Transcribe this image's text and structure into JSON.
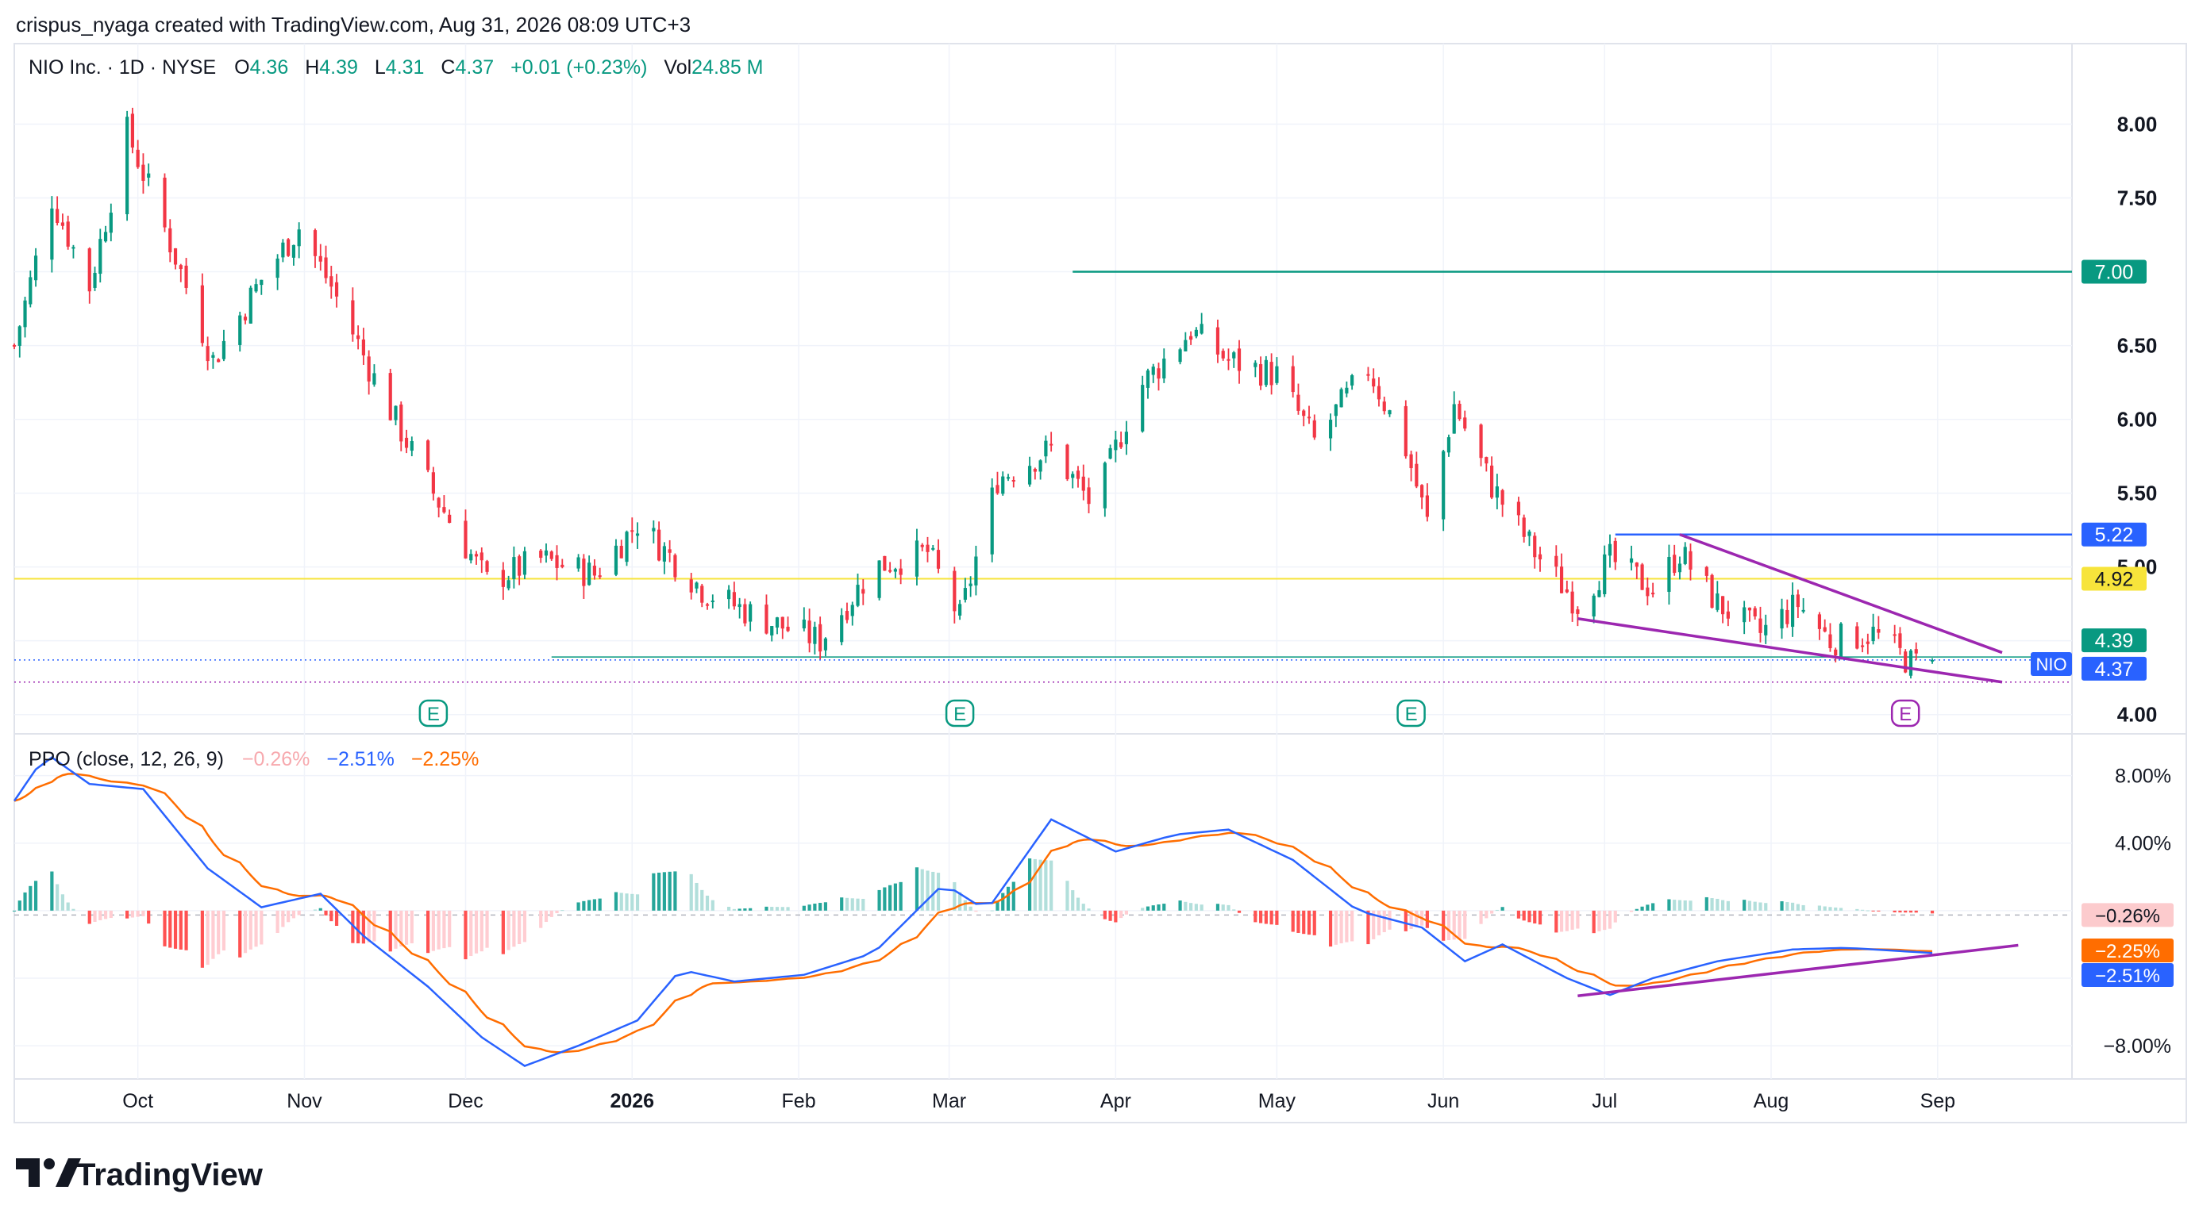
{
  "header": {
    "attribution": "crispus_nyaga created with TradingView.com, Aug 31, 2026 08:09 UTC+3"
  },
  "symbol": {
    "title": "NIO Inc. · 1D · NYSE",
    "o_label": "O",
    "o_value": "4.36",
    "h_label": "H",
    "h_value": "4.39",
    "l_label": "L",
    "l_value": "4.31",
    "c_label": "C",
    "c_value": "4.37",
    "change": "+0.01 (+0.23%)",
    "vol_label": "Vol",
    "vol_value": "24.85 M",
    "ticker_tag": "NIO",
    "value_color": "#089981"
  },
  "indicator": {
    "title": "PPO (close, 12, 26, 9)",
    "hist_value": "−0.26%",
    "ppo_value": "−2.51%",
    "signal_value": "−2.25%"
  },
  "colors": {
    "up": "#089981",
    "down": "#F23645",
    "ppo": "#2962FF",
    "signal": "#FF6D00",
    "trend": "#9C27B0",
    "resistance": "#089981",
    "level_blue": "#2962FF",
    "level_yellow": "#F7E43B"
  },
  "price_axis_labels": [
    "8.00",
    "7.50",
    "6.50",
    "6.00",
    "5.50",
    "5.00",
    "4.00"
  ],
  "ppo_axis_labels": [
    "8.00%",
    "4.00%",
    "−8.00%"
  ],
  "time_axis_labels": [
    "Oct",
    "Nov",
    "Dec",
    "2026",
    "Feb",
    "Mar",
    "Apr",
    "May",
    "Jun",
    "Jul",
    "Aug",
    "Sep"
  ],
  "price_badges": [
    {
      "text": "7.00",
      "color": "#089981",
      "text_color": "#ffffff"
    },
    {
      "text": "5.22",
      "color": "#2962FF",
      "text_color": "#ffffff"
    },
    {
      "text": "4.92",
      "color": "#F7E43B",
      "text_color": "#131722"
    },
    {
      "text": "4.39",
      "color": "#089981",
      "text_color": "#ffffff"
    },
    {
      "text": "4.37",
      "color": "#2962FF",
      "text_color": "#ffffff"
    }
  ],
  "ppo_badges": [
    {
      "text": "−0.26%",
      "color": "#FCCBCD",
      "text_color": "#131722"
    },
    {
      "text": "−2.25%",
      "color": "#FF6D00",
      "text_color": "#ffffff"
    },
    {
      "text": "−2.51%",
      "color": "#2962FF",
      "text_color": "#ffffff"
    }
  ],
  "earnings_markers": [
    {
      "letter": "E",
      "date": "2025-11-25"
    },
    {
      "letter": "E",
      "date": "2026-03-03"
    },
    {
      "letter": "E",
      "date": "2026-05-26"
    },
    {
      "letter": "E",
      "date": "2026-08-26"
    }
  ],
  "footer": {
    "logo_text": "TradingView"
  },
  "chart_data": {
    "type": "candlestick",
    "title": "NIO Inc. · 1D · NYSE",
    "price_range": [
      3.95,
      8.25
    ],
    "ppo_range": [
      -9.5,
      10
    ],
    "x_range": [
      "2025-09-08",
      "2026-09-26"
    ],
    "price_anchors": [
      [
        "2025-09-08",
        6.5
      ],
      [
        "2025-09-15",
        7.5
      ],
      [
        "2025-09-22",
        6.9
      ],
      [
        "2025-09-29",
        7.95
      ],
      [
        "2025-10-08",
        7.1
      ],
      [
        "2025-10-15",
        6.4
      ],
      [
        "2025-10-24",
        6.95
      ],
      [
        "2025-10-31",
        7.3
      ],
      [
        "2025-11-06",
        6.9
      ],
      [
        "2025-11-15",
        6.2
      ],
      [
        "2025-11-25",
        5.5
      ],
      [
        "2025-12-05",
        4.9
      ],
      [
        "2025-12-15",
        5.05
      ],
      [
        "2025-12-25",
        4.95
      ],
      [
        "2026-01-02",
        5.3
      ],
      [
        "2026-01-14",
        4.85
      ],
      [
        "2026-01-25",
        4.65
      ],
      [
        "2026-02-05",
        4.5
      ],
      [
        "2026-02-15",
        5.0
      ],
      [
        "2026-02-25",
        5.1
      ],
      [
        "2026-03-03",
        4.65
      ],
      [
        "2026-03-10",
        5.6
      ],
      [
        "2026-03-20",
        5.8
      ],
      [
        "2026-03-28",
        5.4
      ],
      [
        "2026-04-05",
        6.2
      ],
      [
        "2026-04-15",
        6.6
      ],
      [
        "2026-04-22",
        6.4
      ],
      [
        "2026-05-01",
        6.3
      ],
      [
        "2026-05-08",
        5.85
      ],
      [
        "2026-05-18",
        6.35
      ],
      [
        "2026-05-25",
        5.8
      ],
      [
        "2026-05-29",
        5.3
      ],
      [
        "2026-06-03",
        6.1
      ],
      [
        "2026-06-10",
        5.55
      ],
      [
        "2026-06-18",
        5.1
      ],
      [
        "2026-06-26",
        4.75
      ],
      [
        "2026-07-02",
        5.05
      ],
      [
        "2026-07-10",
        4.85
      ],
      [
        "2026-07-15",
        5.1
      ],
      [
        "2026-07-22",
        4.75
      ],
      [
        "2026-07-30",
        4.55
      ],
      [
        "2026-08-06",
        4.75
      ],
      [
        "2026-08-12",
        4.5
      ],
      [
        "2026-08-20",
        4.55
      ],
      [
        "2026-08-27",
        4.35
      ],
      [
        "2026-08-31",
        4.37
      ]
    ],
    "ppo_anchors": [
      [
        "2025-09-08",
        6.5
      ],
      [
        "2025-09-14",
        9.3
      ],
      [
        "2025-09-22",
        7.5
      ],
      [
        "2025-10-02",
        7.2
      ],
      [
        "2025-10-14",
        2.5
      ],
      [
        "2025-10-24",
        0.2
      ],
      [
        "2025-11-04",
        1.0
      ],
      [
        "2025-11-12",
        -1.5
      ],
      [
        "2025-11-24",
        -4.5
      ],
      [
        "2025-12-04",
        -7.5
      ],
      [
        "2025-12-12",
        -9.2
      ],
      [
        "2025-12-22",
        -8.0
      ],
      [
        "2026-01-02",
        -6.5
      ],
      [
        "2026-01-10",
        -3.5
      ],
      [
        "2026-01-20",
        -4.2
      ],
      [
        "2026-02-02",
        -3.8
      ],
      [
        "2026-02-15",
        -2.5
      ],
      [
        "2026-02-28",
        1.6
      ],
      [
        "2026-03-08",
        0.0
      ],
      [
        "2026-03-20",
        5.4
      ],
      [
        "2026-04-01",
        3.5
      ],
      [
        "2026-04-12",
        4.5
      ],
      [
        "2026-04-22",
        4.8
      ],
      [
        "2026-05-04",
        3.0
      ],
      [
        "2026-05-16",
        0.0
      ],
      [
        "2026-05-28",
        -1.0
      ],
      [
        "2026-06-05",
        -3.0
      ],
      [
        "2026-06-12",
        -2.0
      ],
      [
        "2026-06-24",
        -4.0
      ],
      [
        "2026-07-02",
        -5.0
      ],
      [
        "2026-07-10",
        -4.0
      ],
      [
        "2026-07-22",
        -3.0
      ],
      [
        "2026-08-05",
        -2.3
      ],
      [
        "2026-08-15",
        -2.2
      ],
      [
        "2026-08-31",
        -2.51
      ]
    ],
    "horizontal_levels": [
      {
        "price": 7.0,
        "from": "2026-03-24",
        "to": "2026-09-26",
        "color": "#089981",
        "width": 2.5
      },
      {
        "price": 5.22,
        "from": "2026-07-03",
        "to": "2026-09-26",
        "color": "#2962FF",
        "width": 2.5
      },
      {
        "price": 4.92,
        "from": "2025-09-08",
        "to": "2026-09-26",
        "color": "#F7E43B",
        "width": 2
      },
      {
        "price": 4.39,
        "from": "2025-12-17",
        "to": "2026-09-26",
        "color": "#089981",
        "width": 1.5
      }
    ],
    "dotted_levels": [
      {
        "price": 4.37,
        "color": "#2962FF"
      },
      {
        "price": 4.22,
        "color": "#9C27B0"
      }
    ],
    "trend_lines": [
      {
        "pane": "price",
        "from": [
          "2026-06-26",
          4.65
        ],
        "to": [
          "2026-09-13",
          4.22
        ],
        "color": "#9C27B0"
      },
      {
        "pane": "price",
        "from": [
          "2026-07-15",
          5.22
        ],
        "to": [
          "2026-09-13",
          4.42
        ],
        "color": "#9C27B0"
      },
      {
        "pane": "ppo",
        "from": [
          "2026-06-26",
          -5.05
        ],
        "to": [
          "2026-09-16",
          -2.05
        ],
        "color": "#9C27B0"
      }
    ],
    "xlabel": "",
    "ylabel": ""
  }
}
